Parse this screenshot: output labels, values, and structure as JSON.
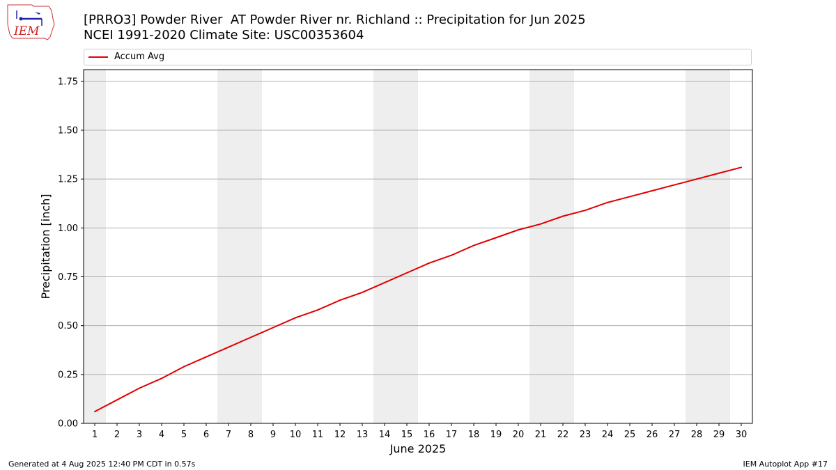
{
  "header": {
    "title_line1": "[PRRO3] Powder River  AT Powder River nr. Richland :: Precipitation for Jun 2025",
    "title_line2": "NCEI 1991-2020 Climate Site: USC00353604",
    "logo_text": "IEM"
  },
  "footer": {
    "generated": "Generated at 4 Aug 2025 12:40 PM CDT in 0.57s",
    "app": "IEM Autoplot App #17"
  },
  "chart_data": {
    "type": "line",
    "xlabel": "June 2025",
    "ylabel": "Precipitation [inch]",
    "x": [
      1,
      2,
      3,
      4,
      5,
      6,
      7,
      8,
      9,
      10,
      11,
      12,
      13,
      14,
      15,
      16,
      17,
      18,
      19,
      20,
      21,
      22,
      23,
      24,
      25,
      26,
      27,
      28,
      29,
      30
    ],
    "series": [
      {
        "name": "Accum Avg",
        "color": "#e00000",
        "values": [
          0.06,
          0.12,
          0.18,
          0.23,
          0.29,
          0.34,
          0.39,
          0.44,
          0.49,
          0.54,
          0.58,
          0.63,
          0.67,
          0.72,
          0.77,
          0.82,
          0.86,
          0.91,
          0.95,
          0.99,
          1.02,
          1.06,
          1.09,
          1.13,
          1.16,
          1.19,
          1.22,
          1.25,
          1.28,
          1.31
        ]
      }
    ],
    "xlim": [
      0.5,
      30.5
    ],
    "ylim": [
      0,
      1.81
    ],
    "yticks": [
      0.0,
      0.25,
      0.5,
      0.75,
      1.0,
      1.25,
      1.5,
      1.75
    ],
    "ytick_labels": [
      "0.00",
      "0.25",
      "0.50",
      "0.75",
      "1.00",
      "1.25",
      "1.50",
      "1.75"
    ],
    "weekend_shading": [
      [
        1,
        1
      ],
      [
        7,
        8
      ],
      [
        14,
        15
      ],
      [
        21,
        22
      ],
      [
        28,
        29
      ]
    ],
    "shade_color": "#eeeeee",
    "grid": "horizontal",
    "legend_position": "top"
  }
}
